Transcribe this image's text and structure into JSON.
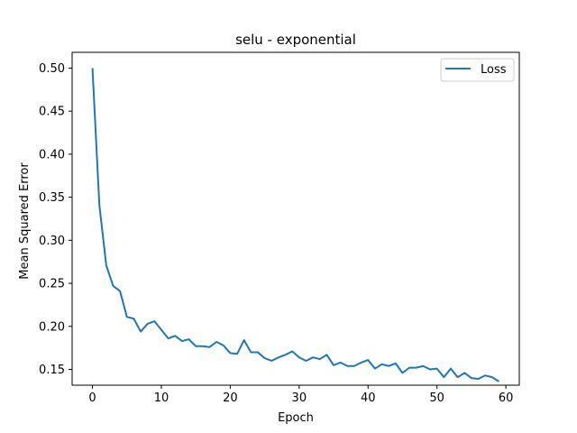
{
  "chart_data": {
    "type": "line",
    "title": "selu - exponential",
    "xlabel": "Epoch",
    "ylabel": "Mean Squared Error",
    "xlim": [
      -2.95,
      61.95
    ],
    "ylim": [
      0.1317,
      0.5183
    ],
    "xticks": [
      0,
      10,
      20,
      30,
      40,
      50,
      60
    ],
    "xtick_labels": [
      "0",
      "10",
      "20",
      "30",
      "40",
      "50",
      "60"
    ],
    "yticks": [
      0.15,
      0.2,
      0.25,
      0.3,
      0.35,
      0.4,
      0.45,
      0.5
    ],
    "ytick_labels": [
      "0.15",
      "0.20",
      "0.25",
      "0.30",
      "0.35",
      "0.40",
      "0.45",
      "0.50"
    ],
    "grid": false,
    "legend_position": "top-right",
    "series": [
      {
        "name": "Loss",
        "color": "#1f77b4",
        "x": [
          0,
          1,
          2,
          3,
          4,
          5,
          6,
          7,
          8,
          9,
          10,
          11,
          12,
          13,
          14,
          15,
          16,
          17,
          18,
          19,
          20,
          21,
          22,
          23,
          24,
          25,
          26,
          27,
          28,
          29,
          30,
          31,
          32,
          33,
          34,
          35,
          36,
          37,
          38,
          39,
          40,
          41,
          42,
          43,
          44,
          45,
          46,
          47,
          48,
          49,
          50,
          51,
          52,
          53,
          54,
          55,
          56,
          57,
          58,
          59
        ],
        "values": [
          0.5,
          0.341,
          0.271,
          0.247,
          0.241,
          0.211,
          0.209,
          0.194,
          0.203,
          0.206,
          0.196,
          0.186,
          0.189,
          0.183,
          0.185,
          0.177,
          0.177,
          0.176,
          0.182,
          0.178,
          0.169,
          0.168,
          0.184,
          0.17,
          0.17,
          0.163,
          0.16,
          0.164,
          0.167,
          0.171,
          0.164,
          0.16,
          0.164,
          0.162,
          0.167,
          0.155,
          0.158,
          0.154,
          0.154,
          0.158,
          0.161,
          0.151,
          0.156,
          0.154,
          0.157,
          0.146,
          0.152,
          0.152,
          0.154,
          0.15,
          0.151,
          0.141,
          0.151,
          0.141,
          0.146,
          0.14,
          0.139,
          0.143,
          0.141,
          0.136
        ]
      }
    ]
  }
}
